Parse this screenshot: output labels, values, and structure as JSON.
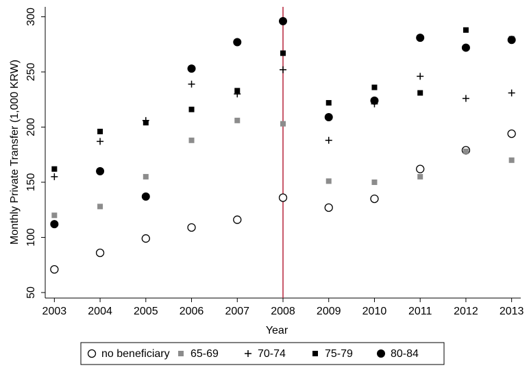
{
  "chart_data": {
    "type": "scatter",
    "x_label": "Year",
    "y_label": "Monthly Private Transfer (1,000 KRW)",
    "x": [
      2003,
      2004,
      2005,
      2006,
      2007,
      2008,
      2009,
      2010,
      2011,
      2012,
      2013
    ],
    "xlim": [
      2002.8,
      2013.2
    ],
    "xticks": [
      2003,
      2004,
      2005,
      2006,
      2007,
      2008,
      2009,
      2010,
      2011,
      2012,
      2013
    ],
    "ylim": [
      45,
      309
    ],
    "yticks": [
      50,
      100,
      150,
      200,
      250,
      300
    ],
    "vline": {
      "x": 2008,
      "color": "#b5243a"
    },
    "legend_position": "bottom",
    "series": [
      {
        "name": "no beneficiary",
        "color": "#000000",
        "marker": "open-circle",
        "values": [
          71,
          86,
          99,
          109,
          116,
          136,
          127,
          135,
          162,
          179,
          194
        ]
      },
      {
        "name": "65-69",
        "color": "#8c8c8c",
        "marker": "square",
        "values": [
          120,
          128,
          155,
          188,
          206,
          203,
          151,
          150,
          155,
          178,
          170
        ]
      },
      {
        "name": "70-74",
        "color": "#000000",
        "marker": "plus",
        "values": [
          155,
          187,
          206,
          239,
          230,
          252,
          188,
          221,
          246,
          226,
          231
        ]
      },
      {
        "name": "75-79",
        "color": "#000000",
        "marker": "square",
        "values": [
          162,
          196,
          204,
          216,
          233,
          267,
          222,
          236,
          231,
          288,
          280
        ]
      },
      {
        "name": "80-84",
        "color": "#000000",
        "marker": "circle",
        "values": [
          112,
          160,
          137,
          253,
          277,
          296,
          209,
          224,
          281,
          272,
          279
        ]
      }
    ]
  }
}
